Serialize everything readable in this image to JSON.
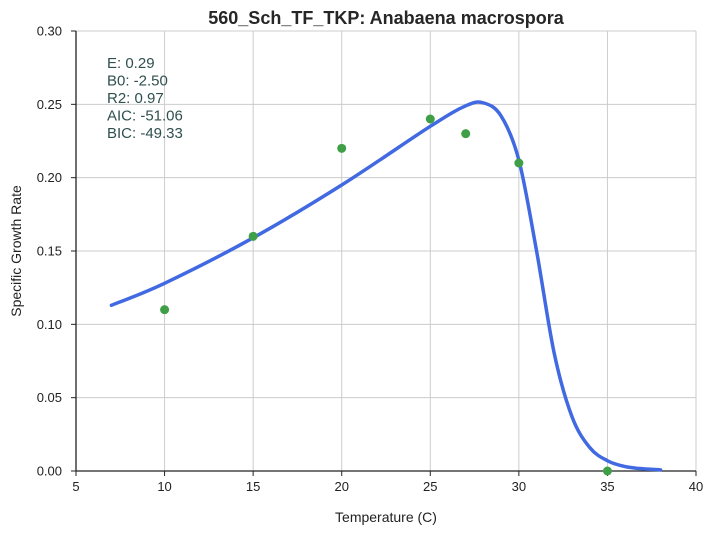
{
  "chart_data": {
    "type": "scatter",
    "title": "560_Sch_TF_TKP: Anabaena macrospora",
    "xlabel": "Temperature (C)",
    "ylabel": "Specific Growth Rate",
    "xlim": [
      5,
      40
    ],
    "ylim": [
      0.0,
      0.3
    ],
    "xticks": [
      "5",
      "10",
      "15",
      "20",
      "25",
      "30",
      "35",
      "40"
    ],
    "yticks": [
      "0.00",
      "0.05",
      "0.10",
      "0.15",
      "0.20",
      "0.25",
      "0.30"
    ],
    "grid": true,
    "colors": {
      "points": "#3f9f46",
      "fit": "#4169e1"
    },
    "points": {
      "x": [
        10,
        15,
        20,
        25,
        27,
        30,
        35
      ],
      "y": [
        0.11,
        0.16,
        0.22,
        0.24,
        0.23,
        0.21,
        0.0
      ]
    },
    "fit_curve": {
      "x": [
        7,
        10,
        15,
        20,
        25,
        27,
        28,
        29,
        30,
        31,
        32,
        33,
        34,
        35,
        36,
        37,
        38
      ],
      "y": [
        0.113,
        0.128,
        0.159,
        0.195,
        0.235,
        0.249,
        0.251,
        0.242,
        0.212,
        0.15,
        0.08,
        0.037,
        0.016,
        0.007,
        0.003,
        0.0015,
        0.0008
      ]
    },
    "annotations": [
      "E:  0.29",
      "B0:  -2.50",
      "R2:  0.97",
      "AIC: -51.06",
      "BIC: -49.33"
    ]
  }
}
